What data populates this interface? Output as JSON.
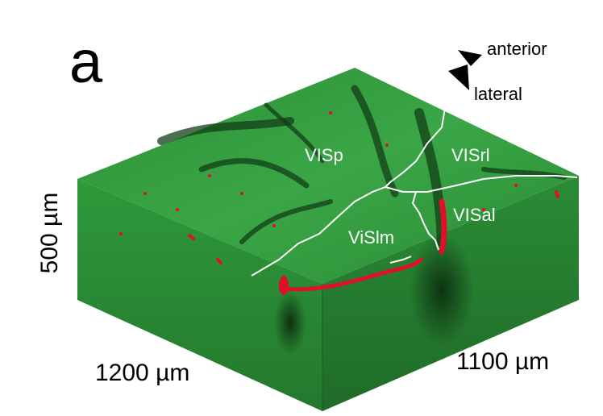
{
  "figure": {
    "panel_letter": "a",
    "dimension_labels": {
      "left_edge": "1200 µm",
      "right_edge": "1100 µm",
      "depth": "500 µm"
    },
    "orientation": {
      "top_label": "anterior",
      "bottom_label": "lateral",
      "arrow_color": "#000000"
    },
    "area_labels": {
      "visp": "VISp",
      "visrl": "VISrl",
      "visal": "VISal",
      "vislm": "ViSlm"
    },
    "colors": {
      "tissue_green": "#2f9a3c",
      "tissue_green_dark": "#1d6a26",
      "vessel_red": "#e0102a",
      "boundary_lines": "#ffffff"
    }
  }
}
